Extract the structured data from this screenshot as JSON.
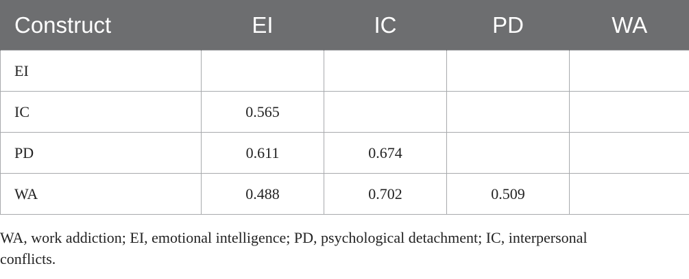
{
  "table": {
    "header": [
      "Construct",
      "EI",
      "IC",
      "PD",
      "WA"
    ],
    "rows": [
      [
        "EI",
        null,
        null,
        null,
        null
      ],
      [
        "IC",
        0.565,
        null,
        null,
        null
      ],
      [
        "PD",
        0.611,
        0.674,
        null,
        null
      ],
      [
        "WA",
        0.488,
        0.702,
        0.509,
        null
      ]
    ]
  },
  "footnote": "WA, work addiction; EI, emotional intelligence; PD, psychological detachment; IC, interpersonal conflicts."
}
